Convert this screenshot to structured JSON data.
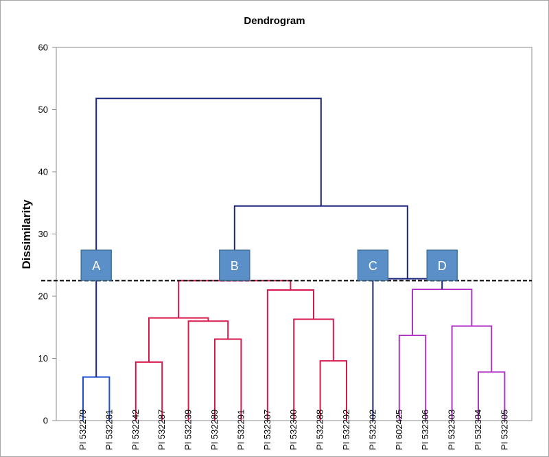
{
  "chart_data": {
    "type": "dendrogram",
    "title": "Dendrogram",
    "ylabel": "Dissimilarity",
    "ylim": [
      0,
      60
    ],
    "yticks": [
      0,
      10,
      20,
      30,
      40,
      50,
      60
    ],
    "leaves": [
      "PI 532279",
      "PI 532281",
      "PI 532242",
      "PI 532287",
      "PI 532239",
      "PI 532289",
      "PI 532291",
      "PI 532307",
      "PI 532300",
      "PI 532288",
      "PI 532292",
      "PI 532302",
      "PI 602425",
      "PI 532306",
      "PI 532303",
      "PI 532304",
      "PI 532305"
    ],
    "cut_height": 22.5,
    "cluster_labels": [
      {
        "label": "A",
        "group": "A"
      },
      {
        "label": "B",
        "group": "B"
      },
      {
        "label": "C",
        "group": "C"
      },
      {
        "label": "D",
        "group": "D"
      }
    ],
    "colors": {
      "A": "#1f4fd1",
      "B": "#d7184c",
      "C": "#1a237e",
      "D": "#b136c5",
      "top": "#1a237e",
      "badge": "#5b8fc7",
      "badge_border": "#41719c",
      "axis": "#8c8c8c"
    },
    "merges": [
      {
        "id": "A1",
        "children": [
          0,
          1
        ],
        "height": 7.0,
        "group": "A"
      },
      {
        "id": "B1",
        "children": [
          2,
          3
        ],
        "height": 9.4,
        "group": "B"
      },
      {
        "id": "B2",
        "children": [
          5,
          6
        ],
        "height": 13.1,
        "group": "B"
      },
      {
        "id": "B3",
        "children": [
          4,
          "B2"
        ],
        "height": 16.0,
        "group": "B"
      },
      {
        "id": "B4",
        "children": [
          "B1",
          "B3"
        ],
        "height": 16.5,
        "group": "B"
      },
      {
        "id": "B5",
        "children": [
          9,
          10
        ],
        "height": 9.6,
        "group": "B"
      },
      {
        "id": "B6",
        "children": [
          8,
          "B5"
        ],
        "height": 16.3,
        "group": "B"
      },
      {
        "id": "B7",
        "children": [
          7,
          "B6"
        ],
        "height": 21.0,
        "group": "B"
      },
      {
        "id": "B8",
        "children": [
          "B4",
          "B7"
        ],
        "height": 22.5,
        "group": "B"
      },
      {
        "id": "D1",
        "children": [
          12,
          13
        ],
        "height": 13.7,
        "group": "D"
      },
      {
        "id": "D2",
        "children": [
          15,
          16
        ],
        "height": 7.8,
        "group": "D"
      },
      {
        "id": "D3",
        "children": [
          14,
          "D2"
        ],
        "height": 15.2,
        "group": "D"
      },
      {
        "id": "D4",
        "children": [
          "D1",
          "D3"
        ],
        "height": 21.1,
        "group": "D"
      },
      {
        "id": "T1",
        "children": [
          11,
          "D4"
        ],
        "height": 22.8,
        "group": "top"
      },
      {
        "id": "T2",
        "children": [
          "B8",
          "T1"
        ],
        "height": 34.5,
        "group": "top"
      },
      {
        "id": "T3",
        "children": [
          "A1",
          "T2"
        ],
        "height": 51.8,
        "group": "top"
      }
    ]
  }
}
